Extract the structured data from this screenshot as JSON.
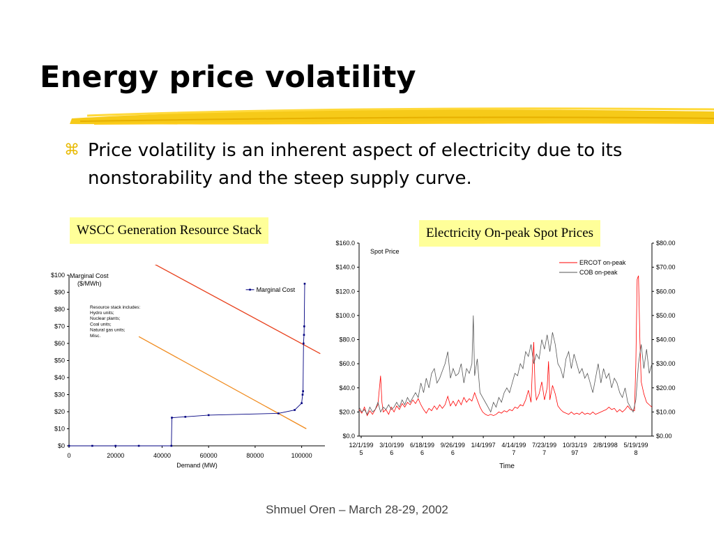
{
  "slide": {
    "title": "Energy price volatility",
    "bullet_glyph": "⌘",
    "bullet_text": "Price volatility is an inherent aspect of electricity due to its nonstorability and the steep supply curve.",
    "footer": "Shmuel Oren – March 28-29, 2002",
    "accent_color": "#f5c400"
  },
  "chart_data": [
    {
      "type": "line",
      "label_box": "WSCC Generation Resource Stack",
      "ylabel": "Marginal Cost ($/MWh)",
      "xlabel": "Demand (MW)",
      "xlim": [
        0,
        110000
      ],
      "ylim": [
        0,
        100
      ],
      "x_ticks": [
        0,
        20000,
        40000,
        60000,
        80000,
        100000
      ],
      "y_tick_labels": [
        "$0",
        "$10",
        "$20",
        "$30",
        "$40",
        "$50",
        "$60",
        "$70",
        "$80",
        "$90",
        "$100"
      ],
      "legend": "Marginal Cost",
      "annotation": [
        "Resource stack includes:",
        "Hydro units;",
        "Nuclear plants;",
        "Coal units;",
        "Natural gas units;",
        "Misc."
      ],
      "series": [
        {
          "name": "Marginal Cost",
          "color": "#000080",
          "points": [
            [
              0,
              0
            ],
            [
              10000,
              0
            ],
            [
              20000,
              0
            ],
            [
              30000,
              0
            ],
            [
              44000,
              0
            ],
            [
              44200,
              16.5
            ],
            [
              50000,
              17
            ],
            [
              60000,
              18
            ],
            [
              90000,
              19
            ],
            [
              97000,
              21
            ],
            [
              100000,
              25
            ],
            [
              100400,
              30
            ],
            [
              100600,
              32
            ],
            [
              100800,
              60
            ],
            [
              101000,
              65
            ],
            [
              101100,
              70
            ],
            [
              101300,
              95
            ]
          ]
        }
      ],
      "supply_lines": [
        {
          "color": "#e8401c",
          "from": [
            36000,
            107
          ],
          "to": [
            108000,
            54
          ]
        },
        {
          "color": "#f08a1c",
          "from": [
            30000,
            64
          ],
          "to": [
            102000,
            10
          ]
        }
      ]
    },
    {
      "type": "line",
      "label_box": "Electricity On-peak Spot Prices",
      "ylabel": "Spot Price",
      "xlabel": "Time",
      "ylim_left": [
        0,
        160
      ],
      "ylim_right": [
        0,
        80
      ],
      "y_left_tick_labels": [
        "$0.0",
        "$20.0",
        "$40.0",
        "$60.0",
        "$80.0",
        "$100.0",
        "$120.0",
        "$140.0",
        "$160.0"
      ],
      "y_right_tick_labels": [
        "$0.00",
        "$10.00",
        "$20.00",
        "$30.00",
        "$40.00",
        "$50.00",
        "$60.00",
        "$70.00",
        "$80.00"
      ],
      "x_tick_labels": [
        [
          "12/1/199",
          "5"
        ],
        [
          "3/10/199",
          "6"
        ],
        [
          "6/18/199",
          "6"
        ],
        [
          "9/26/199",
          "6"
        ],
        [
          "1/4/1997",
          ""
        ],
        [
          "4/14/199",
          "7"
        ],
        [
          "7/23/199",
          "7"
        ],
        [
          "10/31/19",
          "97"
        ],
        [
          "2/8/1998",
          ""
        ],
        [
          "5/19/199",
          "8"
        ]
      ],
      "series": [
        {
          "name": "ERCOT on-peak",
          "axis": "left",
          "color": "#ff0000",
          "points": [
            [
              0,
              22
            ],
            [
              0.2,
              19
            ],
            [
              0.4,
              24
            ],
            [
              0.6,
              17
            ],
            [
              0.8,
              21
            ],
            [
              1.0,
              18
            ],
            [
              1.2,
              22
            ],
            [
              1.4,
              26
            ],
            [
              1.5,
              38
            ],
            [
              1.6,
              50
            ],
            [
              1.7,
              28
            ],
            [
              1.8,
              20
            ],
            [
              2.0,
              22
            ],
            [
              2.2,
              18
            ],
            [
              2.4,
              24
            ],
            [
              2.6,
              20
            ],
            [
              2.8,
              25
            ],
            [
              3.0,
              22
            ],
            [
              3.2,
              27
            ],
            [
              3.4,
              24
            ],
            [
              3.6,
              28
            ],
            [
              3.8,
              26
            ],
            [
              4.0,
              30
            ],
            [
              4.2,
              27
            ],
            [
              4.4,
              31
            ],
            [
              4.6,
              26
            ],
            [
              4.8,
              22
            ],
            [
              5.0,
              19
            ],
            [
              5.2,
              23
            ],
            [
              5.4,
              21
            ],
            [
              5.6,
              25
            ],
            [
              5.8,
              22
            ],
            [
              6.0,
              26
            ],
            [
              6.2,
              23
            ],
            [
              6.4,
              26
            ],
            [
              6.6,
              33
            ],
            [
              6.8,
              25
            ],
            [
              7.0,
              29
            ],
            [
              7.2,
              25
            ],
            [
              7.4,
              30
            ],
            [
              7.6,
              26
            ],
            [
              7.8,
              32
            ],
            [
              8.0,
              28
            ],
            [
              8.2,
              31
            ],
            [
              8.4,
              29
            ],
            [
              8.6,
              36
            ],
            [
              8.8,
              30
            ],
            [
              9.0,
              24
            ],
            [
              9.2,
              20
            ],
            [
              9.4,
              18
            ],
            [
              9.6,
              17
            ],
            [
              9.8,
              18
            ],
            [
              10.0,
              17
            ],
            [
              10.2,
              18
            ],
            [
              10.4,
              20
            ],
            [
              10.6,
              19
            ],
            [
              10.8,
              21
            ],
            [
              11.0,
              20
            ],
            [
              11.2,
              22
            ],
            [
              11.4,
              21
            ],
            [
              11.6,
              24
            ],
            [
              11.8,
              23
            ],
            [
              12.0,
              26
            ],
            [
              12.2,
              25
            ],
            [
              12.4,
              30
            ],
            [
              12.6,
              38
            ],
            [
              12.8,
              28
            ],
            [
              12.9,
              55
            ],
            [
              13.0,
              78
            ],
            [
              13.1,
              40
            ],
            [
              13.2,
              30
            ],
            [
              13.4,
              35
            ],
            [
              13.6,
              45
            ],
            [
              13.8,
              30
            ],
            [
              14.0,
              40
            ],
            [
              14.1,
              62
            ],
            [
              14.2,
              30
            ],
            [
              14.4,
              42
            ],
            [
              14.6,
              35
            ],
            [
              14.8,
              25
            ],
            [
              15.0,
              22
            ],
            [
              15.2,
              20
            ],
            [
              15.4,
              19
            ],
            [
              15.6,
              18
            ],
            [
              15.8,
              20
            ],
            [
              16.0,
              18
            ],
            [
              16.2,
              19
            ],
            [
              16.4,
              18
            ],
            [
              16.6,
              20
            ],
            [
              16.8,
              18
            ],
            [
              17.0,
              19
            ],
            [
              17.2,
              18
            ],
            [
              17.4,
              20
            ],
            [
              17.6,
              18
            ],
            [
              17.8,
              19
            ],
            [
              18.0,
              20
            ],
            [
              18.2,
              21
            ],
            [
              18.4,
              22
            ],
            [
              18.6,
              24
            ],
            [
              18.8,
              22
            ],
            [
              19.0,
              23
            ],
            [
              19.2,
              20
            ],
            [
              19.4,
              22
            ],
            [
              19.6,
              20
            ],
            [
              19.8,
              22
            ],
            [
              20.0,
              25
            ],
            [
              20.2,
              22
            ],
            [
              20.5,
              21
            ],
            [
              20.6,
              60
            ],
            [
              20.7,
              130
            ],
            [
              20.8,
              133
            ],
            [
              20.9,
              80
            ],
            [
              21.0,
              45
            ],
            [
              21.2,
              35
            ],
            [
              21.4,
              28
            ],
            [
              21.6,
              26
            ],
            [
              21.8,
              24
            ]
          ]
        },
        {
          "name": "COB on-peak",
          "axis": "right",
          "color": "#555555",
          "points": [
            [
              0,
              12
            ],
            [
              0.2,
              10
            ],
            [
              0.4,
              11
            ],
            [
              0.6,
              9
            ],
            [
              0.8,
              12
            ],
            [
              1.0,
              10
            ],
            [
              1.2,
              11
            ],
            [
              1.4,
              14
            ],
            [
              1.6,
              10
            ],
            [
              1.8,
              12
            ],
            [
              2.0,
              11
            ],
            [
              2.2,
              13
            ],
            [
              2.4,
              11
            ],
            [
              2.6,
              12
            ],
            [
              2.8,
              14
            ],
            [
              3.0,
              12
            ],
            [
              3.2,
              15
            ],
            [
              3.4,
              13
            ],
            [
              3.6,
              16
            ],
            [
              3.8,
              14
            ],
            [
              4.0,
              16
            ],
            [
              4.2,
              18
            ],
            [
              4.4,
              16
            ],
            [
              4.6,
              22
            ],
            [
              4.8,
              18
            ],
            [
              5.0,
              24
            ],
            [
              5.2,
              20
            ],
            [
              5.4,
              26
            ],
            [
              5.6,
              28
            ],
            [
              5.8,
              22
            ],
            [
              6.0,
              24
            ],
            [
              6.2,
              27
            ],
            [
              6.4,
              30
            ],
            [
              6.6,
              35
            ],
            [
              6.8,
              24
            ],
            [
              7.0,
              28
            ],
            [
              7.2,
              25
            ],
            [
              7.4,
              26
            ],
            [
              7.6,
              30
            ],
            [
              7.8,
              22
            ],
            [
              8.0,
              28
            ],
            [
              8.2,
              26
            ],
            [
              8.4,
              30
            ],
            [
              8.5,
              50
            ],
            [
              8.6,
              25
            ],
            [
              8.8,
              32
            ],
            [
              9.0,
              18
            ],
            [
              9.2,
              16
            ],
            [
              9.4,
              14
            ],
            [
              9.6,
              12
            ],
            [
              9.8,
              10
            ],
            [
              10.0,
              14
            ],
            [
              10.2,
              12
            ],
            [
              10.4,
              16
            ],
            [
              10.6,
              14
            ],
            [
              10.8,
              18
            ],
            [
              11.0,
              20
            ],
            [
              11.2,
              18
            ],
            [
              11.4,
              22
            ],
            [
              11.6,
              26
            ],
            [
              11.8,
              25
            ],
            [
              12.0,
              30
            ],
            [
              12.2,
              28
            ],
            [
              12.4,
              35
            ],
            [
              12.6,
              33
            ],
            [
              12.8,
              38
            ],
            [
              13.0,
              30
            ],
            [
              13.2,
              34
            ],
            [
              13.4,
              32
            ],
            [
              13.6,
              40
            ],
            [
              13.8,
              36
            ],
            [
              14.0,
              42
            ],
            [
              14.2,
              35
            ],
            [
              14.4,
              43
            ],
            [
              14.6,
              38
            ],
            [
              14.8,
              30
            ],
            [
              15.0,
              28
            ],
            [
              15.2,
              24
            ],
            [
              15.4,
              32
            ],
            [
              15.6,
              35
            ],
            [
              15.8,
              28
            ],
            [
              16.0,
              34
            ],
            [
              16.2,
              30
            ],
            [
              16.4,
              26
            ],
            [
              16.6,
              28
            ],
            [
              16.8,
              24
            ],
            [
              17.0,
              26
            ],
            [
              17.2,
              22
            ],
            [
              17.4,
              18
            ],
            [
              17.6,
              24
            ],
            [
              17.8,
              30
            ],
            [
              18.0,
              22
            ],
            [
              18.2,
              28
            ],
            [
              18.4,
              24
            ],
            [
              18.6,
              26
            ],
            [
              18.8,
              20
            ],
            [
              19.0,
              24
            ],
            [
              19.2,
              22
            ],
            [
              19.4,
              18
            ],
            [
              19.6,
              16
            ],
            [
              19.8,
              20
            ],
            [
              20.0,
              14
            ],
            [
              20.2,
              12
            ],
            [
              20.4,
              10
            ],
            [
              20.6,
              15
            ],
            [
              20.8,
              30
            ],
            [
              21.0,
              38
            ],
            [
              21.2,
              28
            ],
            [
              21.4,
              36
            ],
            [
              21.6,
              26
            ],
            [
              21.8,
              30
            ]
          ]
        }
      ]
    }
  ]
}
